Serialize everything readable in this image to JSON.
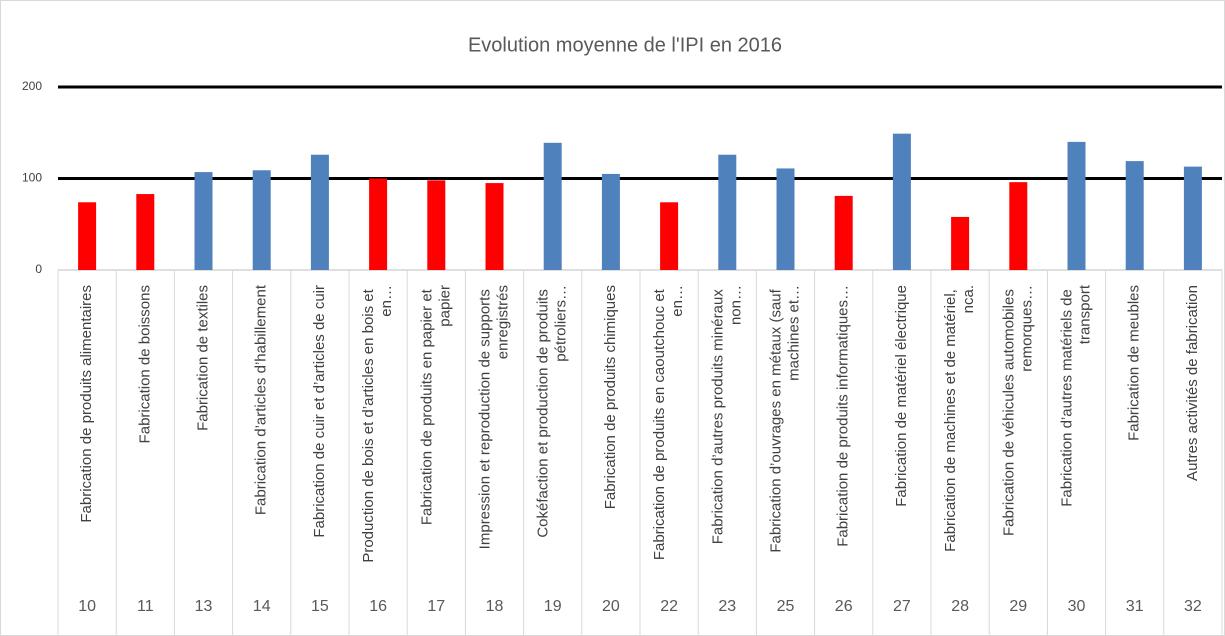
{
  "chart_data": {
    "type": "bar",
    "title": "Evolution moyenne de l'IPI en 2016",
    "categories": [
      "Fabrication de produits alimentaires",
      "Fabrication de boissons",
      "Fabrication de textiles",
      "Fabrication d’articles d’habillement",
      "Fabrication de cuir et d’articles de cuir",
      "Production de bois et d’articles en bois et en…",
      "Fabrication de produits en papier et papier",
      "Impression et reproduction de supports enregistrés",
      "Cokéfaction et production de produits pétroliers…",
      "Fabrication de produits chimiques",
      "Fabrication de produits en caoutchouc et en…",
      "Fabrication d’autres produits minéraux non…",
      "Fabrication d’ouvrages en métaux (sauf machines et…",
      "Fabrication de produits informatiques…",
      "Fabrication de matériel électrique",
      "Fabrication de machines et de matériel, nca.",
      "Fabrication de véhicules automobiles remorques…",
      "Fabrication d’autres matériels de transport",
      "Fabrication de meubles",
      "Autres activités de fabrication"
    ],
    "codes": [
      "10",
      "11",
      "13",
      "14",
      "15",
      "16",
      "17",
      "18",
      "19",
      "20",
      "22",
      "23",
      "25",
      "26",
      "27",
      "28",
      "29",
      "30",
      "31",
      "32"
    ],
    "values": [
      74,
      83,
      107,
      109,
      126,
      100,
      98,
      95,
      139,
      105,
      74,
      126,
      111,
      81,
      149,
      58,
      96,
      140,
      119,
      113
    ],
    "colors": [
      "#ff0000",
      "#ff0000",
      "#4f81bd",
      "#4f81bd",
      "#4f81bd",
      "#ff0000",
      "#ff0000",
      "#ff0000",
      "#4f81bd",
      "#4f81bd",
      "#ff0000",
      "#4f81bd",
      "#4f81bd",
      "#ff0000",
      "#4f81bd",
      "#ff0000",
      "#ff0000",
      "#4f81bd",
      "#4f81bd",
      "#4f81bd"
    ],
    "ylim": [
      0,
      200
    ],
    "yticks": [
      0,
      100,
      200
    ],
    "grid": true
  }
}
